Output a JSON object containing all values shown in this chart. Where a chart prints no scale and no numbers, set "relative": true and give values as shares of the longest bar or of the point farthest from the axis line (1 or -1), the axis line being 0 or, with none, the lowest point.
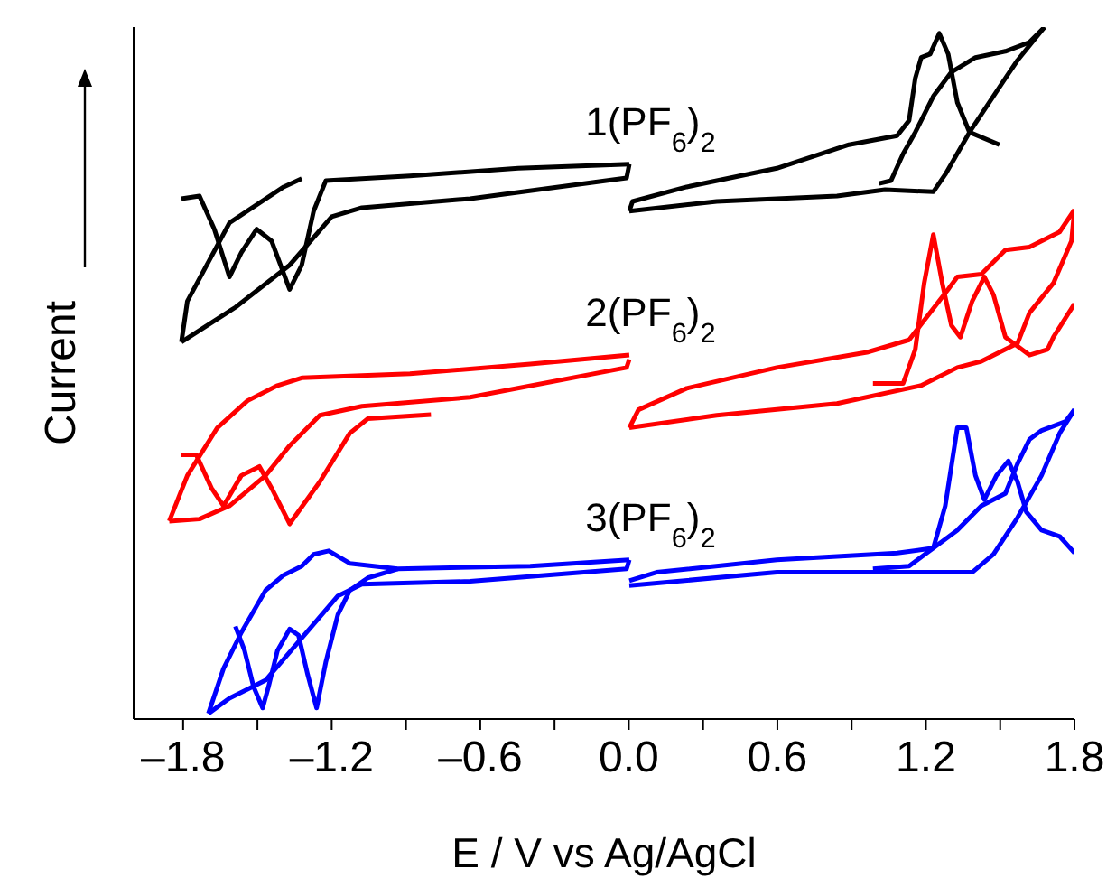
{
  "chart_data": {
    "type": "line",
    "xlabel": "E / V vs Ag/AgCl",
    "ylabel": "Current",
    "relative": true,
    "marker": "none",
    "line_style": "solid",
    "xlim": [
      -2.0,
      1.8
    ],
    "xticks": [
      {
        "value": -1.8,
        "label": "–1.8"
      },
      {
        "value": -1.5,
        "label": null
      },
      {
        "value": -1.2,
        "label": "–1.2"
      },
      {
        "value": -0.9,
        "label": null
      },
      {
        "value": -0.6,
        "label": "–0.6"
      },
      {
        "value": -0.3,
        "label": null
      },
      {
        "value": 0.0,
        "label": "0.0"
      },
      {
        "value": 0.3,
        "label": null
      },
      {
        "value": 0.6,
        "label": "0.6"
      },
      {
        "value": 0.9,
        "label": null
      },
      {
        "value": 1.2,
        "label": "1.2"
      },
      {
        "value": 1.5,
        "label": null
      },
      {
        "value": 1.8,
        "label": "1.8"
      }
    ],
    "series": [
      {
        "name": "1(PF$_{6}$)$_{2}$",
        "color": "#000000",
        "x": [
          -1.807,
          -1.734,
          -1.674,
          -1.613,
          -1.565,
          -1.503,
          -1.443,
          -1.37,
          -1.321,
          -1.273,
          -1.224,
          -0.884,
          -0.447,
          0.002
        ],
        "values": [
          0.752,
          0.756,
          0.708,
          0.639,
          0.674,
          0.708,
          0.691,
          0.621,
          0.656,
          0.734,
          0.778,
          0.785,
          0.796,
          0.802
        ]
      },
      {
        "color": "#000000",
        "x": [
          0.002,
          -0.009,
          -0.641,
          -1.078,
          -1.2,
          -1.37,
          -1.589,
          -1.807
        ],
        "values": [
          0.802,
          0.782,
          0.752,
          0.739,
          0.726,
          0.656,
          0.595,
          0.545
        ]
      },
      {
        "color": "#000000",
        "x": [
          -1.807,
          -1.783,
          -1.613,
          -1.394,
          -1.321
        ],
        "values": [
          0.545,
          0.604,
          0.717,
          0.769,
          0.781
        ]
      },
      {
        "color": "#000000",
        "x": [
          1.497,
          1.376,
          1.327,
          1.29,
          1.254,
          1.217,
          1.181,
          1.157,
          1.132,
          1.084,
          0.889,
          0.598,
          0.234,
          0.015,
          0.002
        ],
        "values": [
          0.83,
          0.848,
          0.891,
          0.961,
          0.991,
          0.961,
          0.956,
          0.926,
          0.865,
          0.843,
          0.83,
          0.796,
          0.769,
          0.748,
          0.734
        ]
      },
      {
        "color": "#000000",
        "x": [
          0.002,
          0.355,
          0.841,
          1.035,
          1.23,
          1.278,
          1.376,
          1.521,
          1.57,
          1.679
        ],
        "values": [
          0.734,
          0.748,
          0.756,
          0.765,
          0.762,
          0.787,
          0.848,
          0.926,
          0.952,
          1.0
        ]
      },
      {
        "color": "#000000",
        "x": [
          1.679,
          1.618,
          1.521,
          1.4,
          1.303,
          1.23,
          1.157,
          1.108,
          1.059,
          1.011
        ],
        "values": [
          1.0,
          0.978,
          0.965,
          0.956,
          0.935,
          0.9,
          0.848,
          0.817,
          0.778,
          0.774
        ]
      },
      {
        "name": "2(PF$_{6}$)$_{2}$",
        "color": "#ff0000",
        "x": [
          0.002,
          -0.398,
          -0.884,
          -1.321,
          -1.419,
          -1.54,
          -1.662,
          -1.783,
          -1.856
        ],
        "values": [
          0.526,
          0.513,
          0.499,
          0.493,
          0.482,
          0.46,
          0.421,
          0.352,
          0.286
        ]
      },
      {
        "color": "#ff0000",
        "x": [
          -1.856,
          -1.734,
          -1.613,
          -1.467,
          -1.37,
          -1.248,
          -1.078,
          -0.641,
          -0.009,
          0.002
        ],
        "values": [
          0.286,
          0.289,
          0.308,
          0.352,
          0.395,
          0.439,
          0.452,
          0.465,
          0.508,
          0.52
        ]
      },
      {
        "color": "#ff0000",
        "x": [
          -0.799,
          -1.054,
          -1.127,
          -1.248,
          -1.37,
          -1.443,
          -1.492,
          -1.565,
          -1.637,
          -1.686,
          -1.747,
          -1.807
        ],
        "values": [
          0.44,
          0.434,
          0.413,
          0.343,
          0.282,
          0.334,
          0.365,
          0.352,
          0.308,
          0.334,
          0.382,
          0.382
        ]
      },
      {
        "color": "#ff0000",
        "x": [
          0.986,
          1.108,
          1.157,
          1.193,
          1.23,
          1.266,
          1.303,
          1.339,
          1.387,
          1.436,
          1.473,
          1.521,
          1.618,
          1.691,
          1.715,
          1.8
        ],
        "values": [
          0.485,
          0.485,
          0.534,
          0.63,
          0.7,
          0.63,
          0.569,
          0.552,
          0.604,
          0.639,
          0.613,
          0.552,
          0.526,
          0.534,
          0.552,
          0.6
        ]
      },
      {
        "color": "#ff0000",
        "x": [
          0.002,
          0.355,
          0.841,
          1.181,
          1.327,
          1.424,
          1.57,
          1.618,
          1.715,
          1.788,
          1.8
        ],
        "values": [
          0.421,
          0.439,
          0.456,
          0.482,
          0.508,
          0.517,
          0.543,
          0.587,
          0.63,
          0.691,
          0.736
        ]
      },
      {
        "color": "#ff0000",
        "x": [
          1.8,
          1.74,
          1.618,
          1.521,
          1.424,
          1.327,
          1.29,
          1.132,
          0.962,
          0.598,
          0.234,
          0.039,
          0.002
        ],
        "values": [
          0.736,
          0.704,
          0.682,
          0.678,
          0.643,
          0.639,
          0.621,
          0.548,
          0.53,
          0.508,
          0.478,
          0.447,
          0.421
        ]
      },
      {
        "name": "3(PF$_{6}$)$_{2}$",
        "color": "#0000ff",
        "x": [
          0.002,
          -0.398,
          -0.933,
          -1.127,
          -1.212,
          -1.273,
          -1.321,
          -1.394,
          -1.467,
          -1.565,
          -1.637,
          -1.698
        ],
        "values": [
          0.23,
          0.221,
          0.217,
          0.225,
          0.243,
          0.238,
          0.221,
          0.208,
          0.186,
          0.125,
          0.073,
          0.008
        ]
      },
      {
        "color": "#0000ff",
        "x": [
          -1.698,
          -1.613,
          -1.467,
          -1.321,
          -1.175,
          -1.078,
          -0.641,
          -0.009,
          0.002
        ],
        "values": [
          0.008,
          0.03,
          0.056,
          0.117,
          0.178,
          0.195,
          0.199,
          0.217,
          0.23
        ]
      },
      {
        "color": "#0000ff",
        "x": [
          -0.933,
          -1.054,
          -1.127,
          -1.175,
          -1.224,
          -1.261,
          -1.297,
          -1.334,
          -1.37,
          -1.419,
          -1.455,
          -1.479,
          -1.516,
          -1.552,
          -1.589
        ],
        "values": [
          0.217,
          0.204,
          0.186,
          0.151,
          0.082,
          0.016,
          0.064,
          0.121,
          0.13,
          0.099,
          0.047,
          0.016,
          0.047,
          0.099,
          0.134
        ]
      },
      {
        "color": "#0000ff",
        "x": [
          0.002,
          0.598,
          0.986,
          1.387,
          1.473,
          1.57,
          1.667,
          1.74,
          1.8
        ],
        "values": [
          0.193,
          0.212,
          0.212,
          0.212,
          0.238,
          0.291,
          0.352,
          0.413,
          0.447
        ]
      },
      {
        "color": "#0000ff",
        "x": [
          1.8,
          1.764,
          1.667,
          1.618,
          1.57,
          1.521,
          1.424,
          1.327,
          1.23,
          1.084,
          0.598,
          0.112,
          0.002
        ],
        "values": [
          0.447,
          0.43,
          0.417,
          0.404,
          0.369,
          0.326,
          0.308,
          0.273,
          0.247,
          0.24,
          0.23,
          0.212,
          0.2
        ]
      },
      {
        "color": "#0000ff",
        "x": [
          0.986,
          1.132,
          1.23,
          1.278,
          1.327,
          1.363,
          1.4,
          1.436,
          1.485,
          1.533,
          1.57,
          1.606,
          1.667,
          1.74,
          1.8
        ],
        "values": [
          0.217,
          0.221,
          0.247,
          0.308,
          0.421,
          0.421,
          0.352,
          0.317,
          0.352,
          0.373,
          0.343,
          0.299,
          0.273,
          0.264,
          0.24
        ]
      }
    ]
  }
}
